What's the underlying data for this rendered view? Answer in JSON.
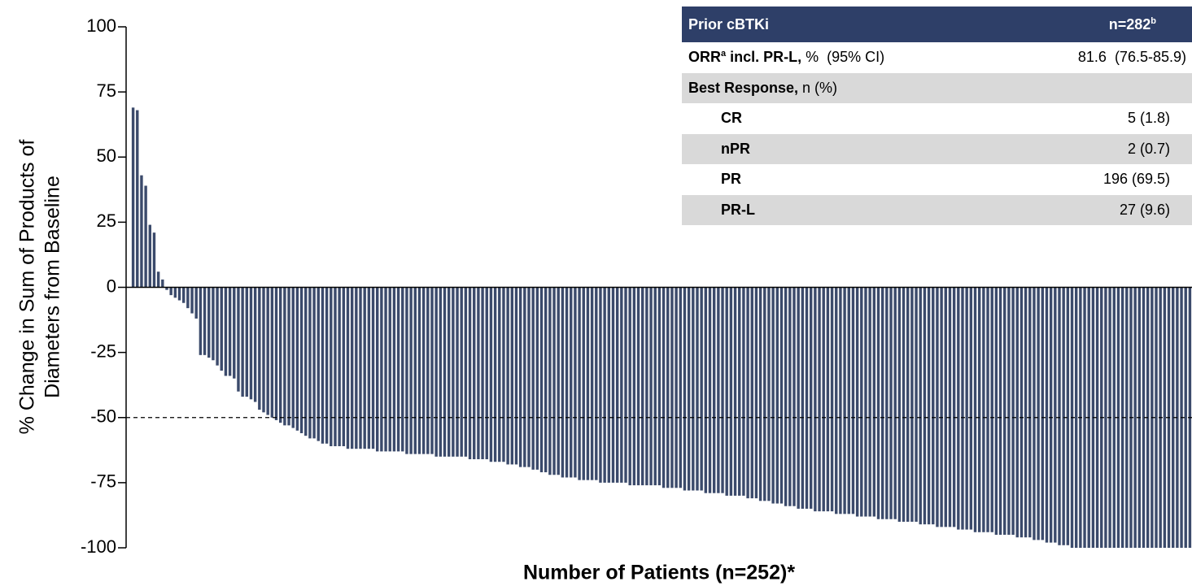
{
  "chart_data": {
    "type": "bar",
    "xlabel": "Number of Patients (n=252)*",
    "ylabel": [
      "% Change in Sum of Products of",
      "Diameters from Baseline"
    ],
    "color": "#3b4a6b",
    "ylim": [
      -100,
      100
    ],
    "yticks": [
      100,
      75,
      50,
      25,
      0,
      -25,
      -50,
      -75,
      -100
    ],
    "reference_line": -50,
    "values": [
      69,
      68,
      43,
      39,
      24,
      21,
      6,
      3,
      -1,
      -3,
      -4,
      -5,
      -6,
      -8,
      -10,
      -12,
      -26,
      -26,
      -27,
      -28,
      -30,
      -32,
      -34,
      -34,
      -35,
      -40,
      -42,
      -42,
      -43,
      -44,
      -47,
      -48,
      -49,
      -50,
      -51,
      -52,
      -53,
      -53,
      -54,
      -55,
      -56,
      -57,
      -58,
      -58,
      -59,
      -60,
      -60,
      -61,
      -61,
      -61,
      -61,
      -62,
      -62,
      -62,
      -62,
      -62,
      -62,
      -62,
      -63,
      -63,
      -63,
      -63,
      -63,
      -63,
      -63,
      -64,
      -64,
      -64,
      -64,
      -64,
      -64,
      -64,
      -65,
      -65,
      -65,
      -65,
      -65,
      -65,
      -65,
      -65,
      -66,
      -66,
      -66,
      -66,
      -66,
      -67,
      -67,
      -67,
      -67,
      -68,
      -68,
      -68,
      -69,
      -69,
      -69,
      -70,
      -70,
      -71,
      -71,
      -72,
      -72,
      -72,
      -73,
      -73,
      -73,
      -73,
      -74,
      -74,
      -74,
      -74,
      -74,
      -75,
      -75,
      -75,
      -75,
      -75,
      -75,
      -75,
      -76,
      -76,
      -76,
      -76,
      -76,
      -76,
      -76,
      -76,
      -77,
      -77,
      -77,
      -77,
      -77,
      -78,
      -78,
      -78,
      -78,
      -78,
      -79,
      -79,
      -79,
      -79,
      -79,
      -80,
      -80,
      -80,
      -80,
      -80,
      -81,
      -81,
      -81,
      -82,
      -82,
      -82,
      -83,
      -83,
      -83,
      -84,
      -84,
      -84,
      -85,
      -85,
      -85,
      -85,
      -86,
      -86,
      -86,
      -86,
      -86,
      -87,
      -87,
      -87,
      -87,
      -87,
      -88,
      -88,
      -88,
      -88,
      -88,
      -89,
      -89,
      -89,
      -89,
      -89,
      -90,
      -90,
      -90,
      -90,
      -90,
      -91,
      -91,
      -91,
      -91,
      -92,
      -92,
      -92,
      -92,
      -92,
      -93,
      -93,
      -93,
      -93,
      -94,
      -94,
      -94,
      -94,
      -94,
      -95,
      -95,
      -95,
      -95,
      -95,
      -96,
      -96,
      -96,
      -96,
      -97,
      -97,
      -97,
      -98,
      -98,
      -98,
      -99,
      -99,
      -99,
      -100,
      -100,
      -100,
      -100,
      -100,
      -100,
      -100,
      -100,
      -100,
      -100,
      -100,
      -100,
      -100,
      -100,
      -100,
      -100,
      -100,
      -100,
      -100,
      -100,
      -100,
      -100,
      -100,
      -100,
      -100,
      -100,
      -100,
      -100,
      -100
    ]
  },
  "table": {
    "header": {
      "label": "Prior cBTKi",
      "value": "n=282",
      "value_sup": "b"
    },
    "orr": {
      "label": "ORR",
      "sup": "a",
      "label_tail": " incl. PR-L,",
      "unit": " %  (95% CI)",
      "value": "81.6  (76.5-85.9)"
    },
    "best": {
      "label": "Best Response,",
      "unit": " n (%)"
    },
    "rows": [
      [
        "CR",
        "5 (1.8)"
      ],
      [
        "nPR",
        "2 (0.7)"
      ],
      [
        "PR",
        "196 (69.5)"
      ],
      [
        "PR-L",
        "27 (9.6)"
      ]
    ]
  }
}
